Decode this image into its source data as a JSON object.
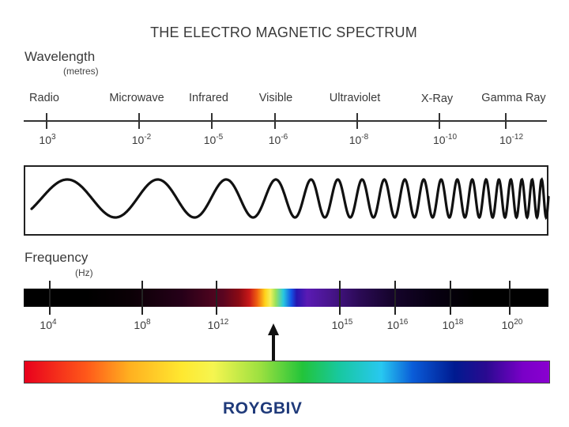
{
  "title": "THE ELECTRO MAGNETIC SPECTRUM",
  "wavelength": {
    "title": "Wavelength",
    "unit": "(metres)",
    "bands": [
      "Radio",
      "Microwave",
      "Infrared",
      "Visible",
      "Ultraviolet",
      "X-Ray",
      "Gamma Ray"
    ],
    "ticks": [
      {
        "base": "10",
        "exp": "3"
      },
      {
        "base": "10",
        "exp": "-2"
      },
      {
        "base": "10",
        "exp": "-5"
      },
      {
        "base": "10",
        "exp": "-6"
      },
      {
        "base": "10",
        "exp": "-8"
      },
      {
        "base": "10",
        "exp": "-10"
      },
      {
        "base": "10",
        "exp": "-12"
      }
    ]
  },
  "frequency": {
    "title": "Frequency",
    "unit": "(Hz)",
    "ticks": [
      {
        "base": "10",
        "exp": "4"
      },
      {
        "base": "10",
        "exp": "8"
      },
      {
        "base": "10",
        "exp": "12"
      },
      {
        "base": "10",
        "exp": "15"
      },
      {
        "base": "10",
        "exp": "16"
      },
      {
        "base": "10",
        "exp": "18"
      },
      {
        "base": "10",
        "exp": "20"
      }
    ]
  },
  "visible_label": "ROYGBIV",
  "colors": {
    "line": "#333333",
    "label": "#1f3a7a"
  }
}
